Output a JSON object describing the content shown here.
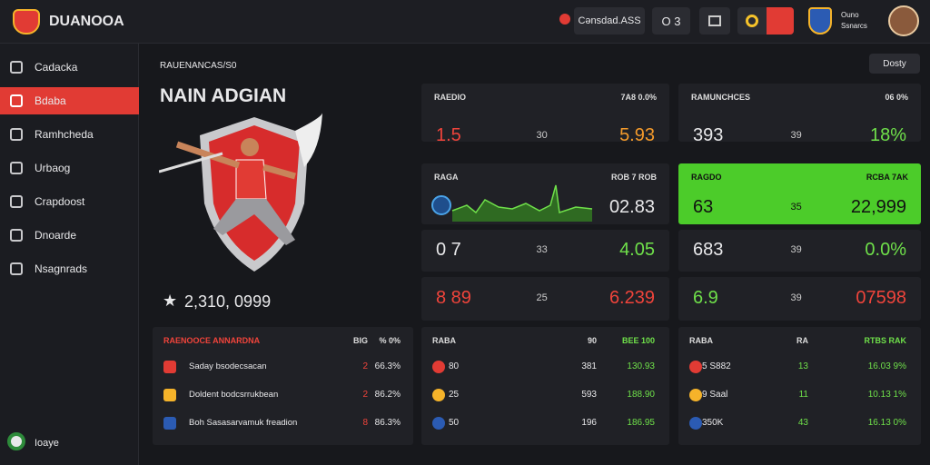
{
  "header": {
    "brand": "DUANOOA",
    "search": "Cənsdad.ASS",
    "counter": "O 3",
    "user": [
      "Ouno",
      "Ssnarcs"
    ]
  },
  "sidebar": {
    "items": [
      "Cadacka",
      "Bdaba",
      "Ramhcheda",
      "Urbaog",
      "Crapdoost",
      "Dnoarde",
      "Nsagnrads"
    ],
    "footer": "Ioaye"
  },
  "hero": {
    "breadcrumb": "RAUENANCAS/S0",
    "title": "NAIN ADGIAN",
    "rating": "2,310, 0999",
    "button": "Dosty"
  },
  "cards": [
    {
      "label": "RAEDIO",
      "meta": "7A8 0.0%",
      "values": [
        "1.5",
        "30",
        "5.93"
      ]
    },
    {
      "label": "RAMUNCHCES",
      "meta": "06 0%",
      "values": [
        "393",
        "39",
        "18%"
      ]
    },
    {
      "label": "RAGA",
      "meta": "ROB 7 ROB",
      "values": [
        "02.83"
      ]
    },
    {
      "label": "RAGDO",
      "meta": "RCBA 7AK",
      "values": [
        "63",
        "35",
        "22,999"
      ]
    },
    {
      "values": [
        "0 7",
        "33",
        "4.05"
      ]
    },
    {
      "values": [
        "683",
        "39",
        "0.0%"
      ]
    },
    {
      "values": [
        "8 89",
        "25",
        "6.239"
      ]
    },
    {
      "values": [
        "6.9",
        "39",
        "07598"
      ]
    }
  ],
  "tables": [
    {
      "title": "RAENOOCE ANNARDNA",
      "columns": [
        "BIG",
        "% 0%"
      ],
      "rows": [
        [
          "Saday bsodecsacan",
          "2",
          "66.3%"
        ],
        [
          "Doldent bodcsrrukbean",
          "2",
          "86.2%"
        ],
        [
          "Boh Sasasarvamuk freadion",
          "8",
          "86.3%"
        ]
      ]
    },
    {
      "title": "RABA",
      "columns": [
        "90",
        "BEE 100"
      ],
      "rows": [
        [
          "80",
          "381",
          "130.93"
        ],
        [
          "25",
          "593",
          "188.90"
        ],
        [
          "50",
          "196",
          "186.95"
        ]
      ]
    },
    {
      "title": "RABA",
      "columns": [
        "RA",
        "RTBS RAK"
      ],
      "rows": [
        [
          "5 S882",
          "13",
          "16.03 9%"
        ],
        [
          "9 Saal",
          "11",
          "10.13 1%"
        ],
        [
          "350K",
          "43",
          "16.13 0%"
        ]
      ]
    }
  ]
}
